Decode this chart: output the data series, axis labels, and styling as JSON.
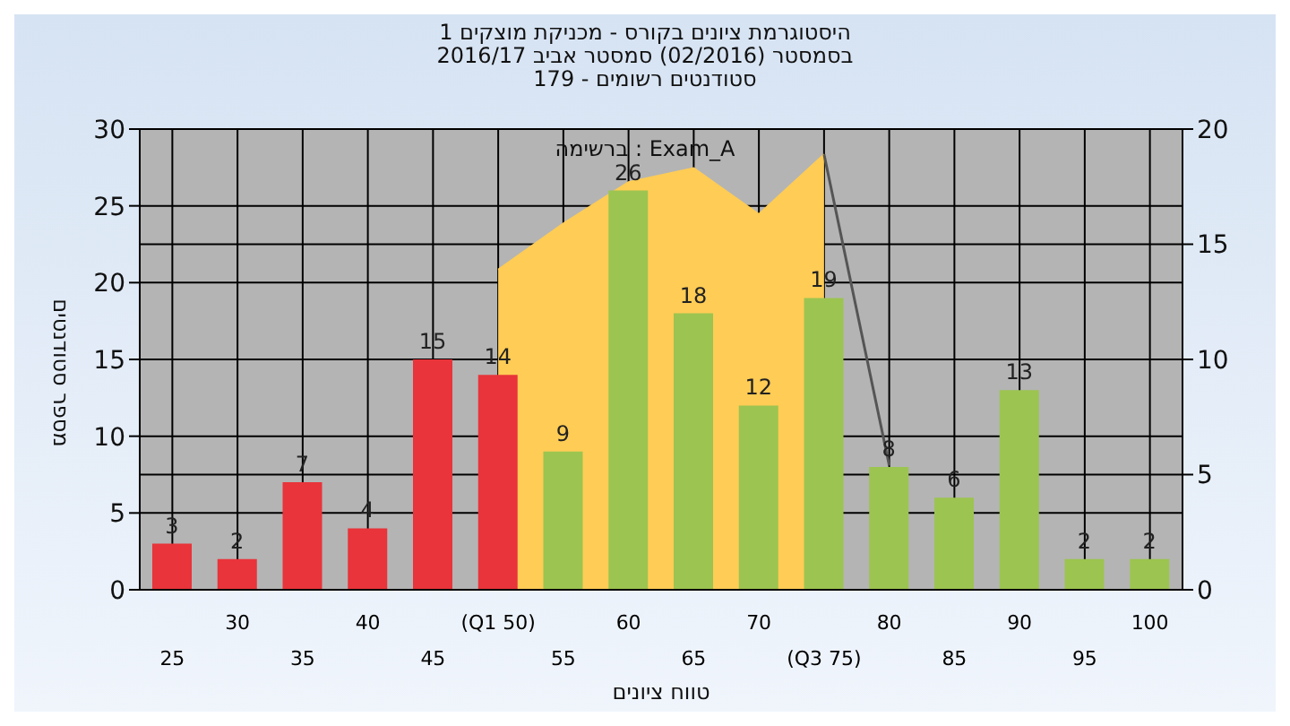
{
  "chart_data": {
    "type": "bar",
    "title": "היסטוגרמת ציונים בקורס - מכניקת מוצקים 1",
    "subtitle": "בסמסטר  (02/2016)  סמסטר אביב 2016/17\nסטודנטים רשומים - 179",
    "xlabel": "טווח ציונים",
    "ylabel": "מספר סטודנטים",
    "annotations": [
      "ברשימה : Exam_A"
    ],
    "categories": [
      "25",
      "30",
      "35",
      "40",
      "45",
      "(Q1 50)",
      "55",
      "60",
      "65",
      "70",
      "(Q3 75)",
      "80",
      "85",
      "90",
      "95",
      "100"
    ],
    "series": [
      {
        "values": [
          3,
          2,
          7,
          4,
          15,
          14,
          9,
          26,
          18,
          12,
          19,
          8,
          6,
          13,
          2,
          2
        ],
        "value_labels": [
          "3",
          "2",
          "7",
          "4",
          "15",
          "14",
          "9",
          "26",
          "18",
          "12",
          "19",
          "8",
          "6",
          "13",
          "2",
          "2"
        ],
        "colors": [
          "#e8343a",
          "#e8343a",
          "#e8343a",
          "#e8343a",
          "#e8343a",
          "#e8343a",
          "#9cc450",
          "#9cc450",
          "#9cc450",
          "#9cc450",
          "#9cc450",
          "#9cc450",
          "#9cc450",
          "#9cc450",
          "#9cc450",
          "#9cc450"
        ]
      },
      {
        "type": "area",
        "axis": "y2",
        "color": "#ffcc55",
        "values": [
          null,
          null,
          null,
          null,
          null,
          13.9,
          15.9,
          17.7,
          18.3,
          16.3,
          18.9,
          null,
          null,
          null,
          null,
          null
        ]
      },
      {
        "type": "line",
        "axis": "y2",
        "color": "#555555",
        "values": [
          null,
          null,
          null,
          null,
          null,
          null,
          null,
          null,
          null,
          null,
          18.9,
          5.4,
          null,
          null,
          null,
          null
        ]
      }
    ],
    "ylim": [
      0,
      30
    ],
    "yticks": [
      0,
      5,
      10,
      15,
      20,
      25,
      30
    ],
    "y2lim": [
      0,
      20
    ],
    "y2ticks": [
      0,
      5,
      10,
      15,
      20
    ],
    "grid": true
  }
}
